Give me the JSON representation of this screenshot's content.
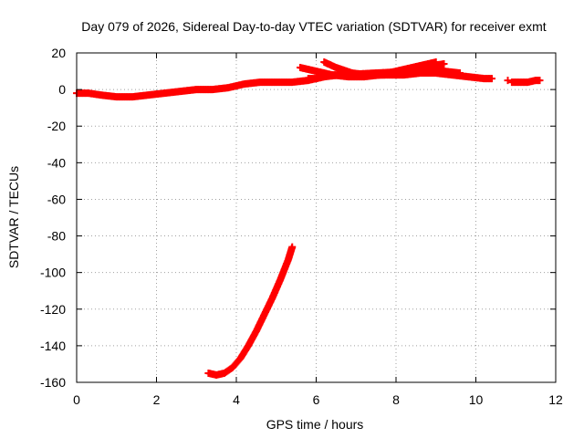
{
  "chart_data": {
    "type": "scatter",
    "title": "Day 079 of 2026, Sidereal Day-to-day VTEC variation (SDTVAR) for receiver exmt",
    "xlabel": "GPS time / hours",
    "ylabel": "SDTVAR / TECUs",
    "xlim": [
      0,
      12
    ],
    "ylim": [
      -160,
      20
    ],
    "xticks": [
      0,
      2,
      4,
      6,
      8,
      10,
      12
    ],
    "yticks": [
      20,
      0,
      -20,
      -40,
      -60,
      -80,
      -100,
      -120,
      -140,
      -160
    ],
    "grid": true,
    "marker": "plus",
    "color": "#ff0000",
    "series": [
      {
        "name": "main-trace",
        "x": [
          0.0,
          0.3,
          0.6,
          1.0,
          1.4,
          1.8,
          2.2,
          2.6,
          3.0,
          3.4,
          3.8,
          4.2,
          4.6,
          5.0,
          5.4,
          5.8,
          6.2,
          6.6,
          7.0,
          7.4,
          7.8,
          8.2,
          8.6,
          9.0,
          9.4,
          9.8,
          10.2,
          10.4
        ],
        "y": [
          -2,
          -2,
          -3,
          -4,
          -4,
          -3,
          -2,
          -1,
          0,
          0,
          1,
          3,
          4,
          4,
          4,
          5,
          7,
          8,
          8,
          8,
          8,
          8,
          9,
          9,
          8,
          7,
          6,
          6
        ]
      },
      {
        "name": "upper-branch-1",
        "x": [
          5.6,
          6.0,
          6.4,
          6.8,
          7.2,
          7.6,
          8.0,
          8.4,
          8.8,
          9.0
        ],
        "y": [
          12,
          10,
          8,
          7,
          7,
          8,
          10,
          12,
          14,
          15
        ]
      },
      {
        "name": "upper-branch-2",
        "x": [
          6.2,
          6.5,
          6.9,
          7.3,
          7.7,
          8.1,
          8.5,
          8.9,
          9.2
        ],
        "y": [
          15,
          12,
          9,
          8,
          8,
          9,
          11,
          13,
          14
        ]
      },
      {
        "name": "upper-branch-3",
        "x": [
          5.8,
          6.0,
          6.2,
          6.4,
          6.6,
          8.4,
          8.8,
          9.2,
          9.6
        ],
        "y": [
          6,
          6,
          7,
          8,
          8,
          10,
          13,
          10,
          9
        ]
      },
      {
        "name": "tail-segment",
        "x": [
          10.9,
          11.1,
          11.3,
          11.5,
          11.6
        ],
        "y": [
          4,
          4,
          4,
          5,
          5
        ]
      },
      {
        "name": "isolated-point",
        "x": [
          10.8
        ],
        "y": [
          5
        ]
      },
      {
        "name": "lower-trace",
        "x": [
          3.3,
          3.5,
          3.7,
          3.9,
          4.1,
          4.3,
          4.5,
          4.7,
          4.9,
          5.1,
          5.3,
          5.4
        ],
        "y": [
          -155,
          -156,
          -155,
          -152,
          -147,
          -140,
          -132,
          -123,
          -114,
          -104,
          -93,
          -86
        ]
      }
    ]
  }
}
